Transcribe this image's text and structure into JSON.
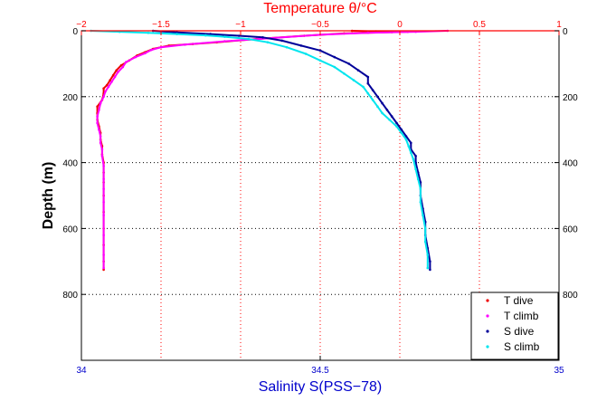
{
  "chart_data": {
    "type": "scatter",
    "top_axis": {
      "label": "Temperature θ/°C",
      "range": [
        -2,
        1
      ],
      "ticks": [
        -2,
        -1.5,
        -1,
        -0.5,
        0,
        0.5,
        1
      ],
      "tick_labels": [
        "−2",
        "−1.5",
        "−1",
        "−0.5",
        "0",
        "0.5",
        "1"
      ],
      "color": "#ff0000"
    },
    "bottom_axis": {
      "label": "Salinity S(PSS−78)",
      "range": [
        34,
        35
      ],
      "ticks": [
        34,
        34.5,
        35
      ],
      "tick_labels": [
        "34",
        "34.5",
        "35"
      ],
      "color": "#0000cc"
    },
    "y_axis": {
      "label": "Depth (m)",
      "range": [
        0,
        1000
      ],
      "reversed": true,
      "ticks": [
        0,
        200,
        400,
        600,
        800
      ],
      "tick_labels": [
        "0",
        "200",
        "400",
        "600",
        "800"
      ]
    },
    "grid": {
      "vertical_temperature": true,
      "horizontal_depth": true
    },
    "legend": {
      "placement": "bottom-right",
      "entries": [
        {
          "name": "T dive",
          "color": "#ee0000"
        },
        {
          "name": "T climb",
          "color": "#ff00ff"
        },
        {
          "name": "S dive",
          "color": "#000099"
        },
        {
          "name": "S climb",
          "color": "#00e5ee"
        }
      ]
    },
    "series": [
      {
        "name": "T dive",
        "axis": "top",
        "color": "#ee0000",
        "points": [
          [
            -0.3,
            0
          ],
          [
            -0.15,
            2
          ],
          [
            -0.05,
            4
          ],
          [
            0.05,
            3
          ],
          [
            -0.35,
            8
          ],
          [
            -0.6,
            15
          ],
          [
            -0.9,
            25
          ],
          [
            -1.15,
            35
          ],
          [
            -1.3,
            40
          ],
          [
            -1.45,
            45
          ],
          [
            -1.55,
            55
          ],
          [
            -1.6,
            65
          ],
          [
            -1.65,
            75
          ],
          [
            -1.7,
            90
          ],
          [
            -1.75,
            105
          ],
          [
            -1.78,
            120
          ],
          [
            -1.8,
            135
          ],
          [
            -1.82,
            150
          ],
          [
            -1.84,
            165
          ],
          [
            -1.86,
            175
          ],
          [
            -1.86,
            190
          ],
          [
            -1.87,
            210
          ],
          [
            -1.9,
            230
          ],
          [
            -1.9,
            250
          ],
          [
            -1.9,
            270
          ],
          [
            -1.89,
            290
          ],
          [
            -1.88,
            310
          ],
          [
            -1.88,
            330
          ],
          [
            -1.87,
            350
          ],
          [
            -1.87,
            375
          ],
          [
            -1.86,
            400
          ],
          [
            -1.86,
            430
          ],
          [
            -1.86,
            460
          ],
          [
            -1.86,
            500
          ],
          [
            -1.86,
            550
          ],
          [
            -1.86,
            600
          ],
          [
            -1.86,
            650
          ],
          [
            -1.86,
            700
          ],
          [
            -1.86,
            725
          ]
        ]
      },
      {
        "name": "T climb",
        "axis": "top",
        "color": "#ff00ff",
        "points": [
          [
            0.3,
            0
          ],
          [
            0.1,
            3
          ],
          [
            -0.2,
            6
          ],
          [
            -0.5,
            12
          ],
          [
            -0.8,
            22
          ],
          [
            -1.1,
            32
          ],
          [
            -1.35,
            42
          ],
          [
            -1.5,
            50
          ],
          [
            -1.56,
            58
          ],
          [
            -1.6,
            68
          ],
          [
            -1.66,
            80
          ],
          [
            -1.72,
            95
          ],
          [
            -1.74,
            110
          ],
          [
            -1.77,
            125
          ],
          [
            -1.79,
            140
          ],
          [
            -1.81,
            155
          ],
          [
            -1.83,
            170
          ],
          [
            -1.85,
            185
          ],
          [
            -1.86,
            200
          ],
          [
            -1.88,
            220
          ],
          [
            -1.89,
            240
          ],
          [
            -1.9,
            260
          ],
          [
            -1.9,
            280
          ],
          [
            -1.89,
            300
          ],
          [
            -1.88,
            320
          ],
          [
            -1.88,
            340
          ],
          [
            -1.87,
            360
          ],
          [
            -1.87,
            380
          ],
          [
            -1.86,
            410
          ],
          [
            -1.86,
            450
          ],
          [
            -1.86,
            480
          ],
          [
            -1.86,
            520
          ],
          [
            -1.86,
            560
          ],
          [
            -1.86,
            620
          ],
          [
            -1.86,
            680
          ],
          [
            -1.86,
            720
          ]
        ]
      },
      {
        "name": "S dive",
        "axis": "bottom",
        "color": "#000099",
        "points": [
          [
            34.15,
            0
          ],
          [
            34.2,
            5
          ],
          [
            34.27,
            10
          ],
          [
            34.33,
            15
          ],
          [
            34.38,
            20
          ],
          [
            34.42,
            30
          ],
          [
            34.46,
            45
          ],
          [
            34.5,
            60
          ],
          [
            34.53,
            80
          ],
          [
            34.56,
            100
          ],
          [
            34.58,
            120
          ],
          [
            34.6,
            140
          ],
          [
            34.6,
            160
          ],
          [
            34.61,
            180
          ],
          [
            34.62,
            200
          ],
          [
            34.63,
            220
          ],
          [
            34.64,
            240
          ],
          [
            34.65,
            260
          ],
          [
            34.66,
            280
          ],
          [
            34.67,
            300
          ],
          [
            34.68,
            320
          ],
          [
            34.69,
            340
          ],
          [
            34.69,
            360
          ],
          [
            34.7,
            380
          ],
          [
            34.7,
            400
          ],
          [
            34.705,
            430
          ],
          [
            34.71,
            460
          ],
          [
            34.71,
            500
          ],
          [
            34.715,
            540
          ],
          [
            34.72,
            580
          ],
          [
            34.72,
            620
          ],
          [
            34.725,
            660
          ],
          [
            34.73,
            700
          ],
          [
            34.73,
            725
          ]
        ]
      },
      {
        "name": "S climb",
        "axis": "bottom",
        "color": "#00e5ee",
        "points": [
          [
            34.02,
            0
          ],
          [
            34.08,
            3
          ],
          [
            34.14,
            6
          ],
          [
            34.2,
            10
          ],
          [
            34.26,
            14
          ],
          [
            34.3,
            18
          ],
          [
            34.35,
            25
          ],
          [
            34.39,
            35
          ],
          [
            34.43,
            50
          ],
          [
            34.47,
            70
          ],
          [
            34.5,
            90
          ],
          [
            34.53,
            110
          ],
          [
            34.55,
            130
          ],
          [
            34.57,
            150
          ],
          [
            34.59,
            170
          ],
          [
            34.6,
            190
          ],
          [
            34.61,
            210
          ],
          [
            34.62,
            230
          ],
          [
            34.63,
            250
          ],
          [
            34.645,
            270
          ],
          [
            34.66,
            290
          ],
          [
            34.67,
            310
          ],
          [
            34.68,
            330
          ],
          [
            34.685,
            350
          ],
          [
            34.69,
            370
          ],
          [
            34.695,
            390
          ],
          [
            34.7,
            420
          ],
          [
            34.705,
            450
          ],
          [
            34.71,
            480
          ],
          [
            34.71,
            520
          ],
          [
            34.715,
            560
          ],
          [
            34.72,
            600
          ],
          [
            34.72,
            640
          ],
          [
            34.725,
            680
          ],
          [
            34.725,
            720
          ]
        ]
      }
    ]
  }
}
